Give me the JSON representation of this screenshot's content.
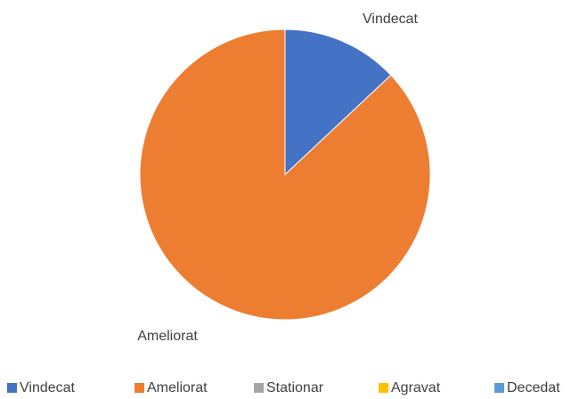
{
  "chart_data": {
    "type": "pie",
    "categories": [
      "Vindecat",
      "Ameliorat",
      "Stationar",
      "Agravat",
      "Decedat"
    ],
    "values": [
      13,
      87,
      0,
      0,
      0
    ],
    "colors": [
      "#4472c4",
      "#ed7d31",
      "#a5a5a5",
      "#ffc000",
      "#5b9bd5"
    ],
    "legend": "bottom"
  }
}
